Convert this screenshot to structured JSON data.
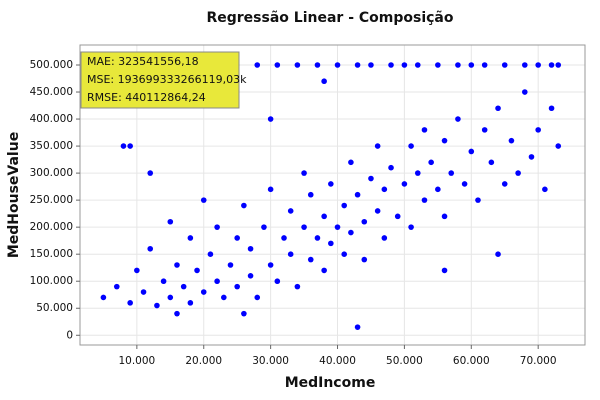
{
  "chart_data": {
    "type": "scatter",
    "title": "Regressão Linear - Composição",
    "x_label": "MedIncome",
    "y_label": "MedHouseValue",
    "color": "#0000ff",
    "grid": true,
    "annotations": [
      "MAE: 323541556,18",
      "MSE: 193699333266119,03k",
      "RMSE: 440112864,24"
    ],
    "xlim": [
      1500,
      77000
    ],
    "ylim": [
      -18000,
      537000
    ],
    "xticks": [
      {
        "value": 10000,
        "label": "10.000"
      },
      {
        "value": 20000,
        "label": "20.000"
      },
      {
        "value": 30000,
        "label": "30.000"
      },
      {
        "value": 40000,
        "label": "40.000"
      },
      {
        "value": 50000,
        "label": "50.000"
      },
      {
        "value": 60000,
        "label": "60.000"
      },
      {
        "value": 70000,
        "label": "70.000"
      }
    ],
    "yticks": [
      0,
      {
        "value": 50000,
        "label": "50.000"
      },
      {
        "value": 100000,
        "label": "100.000"
      },
      {
        "value": 150000,
        "label": "150.000"
      },
      {
        "value": 200000,
        "label": "200.000"
      },
      {
        "value": 250000,
        "label": "250.000"
      },
      {
        "value": 300000,
        "label": "300.000"
      },
      {
        "value": 350000,
        "label": "350.000"
      },
      {
        "value": 400000,
        "label": "400.000"
      },
      {
        "value": 450000,
        "label": "450.000"
      },
      {
        "value": 500000,
        "label": "500.000"
      }
    ],
    "x": [
      5000,
      7000,
      8000,
      9000,
      10000,
      11000,
      12000,
      13000,
      14000,
      15000,
      15000,
      16000,
      17000,
      18000,
      18000,
      19000,
      20000,
      20000,
      21000,
      22000,
      22000,
      23000,
      24000,
      24000,
      25000,
      25000,
      26000,
      27000,
      27000,
      28000,
      28000,
      29000,
      30000,
      30000,
      31000,
      31000,
      32000,
      33000,
      33000,
      34000,
      34000,
      35000,
      35000,
      36000,
      36000,
      37000,
      37000,
      38000,
      38000,
      39000,
      39000,
      40000,
      40000,
      41000,
      41000,
      42000,
      42000,
      43000,
      43000,
      44000,
      44000,
      45000,
      45000,
      46000,
      46000,
      47000,
      47000,
      48000,
      48000,
      49000,
      50000,
      50000,
      51000,
      51000,
      52000,
      52000,
      53000,
      53000,
      54000,
      55000,
      55000,
      56000,
      56000,
      57000,
      58000,
      58000,
      59000,
      60000,
      60000,
      61000,
      62000,
      62000,
      63000,
      64000,
      65000,
      65000,
      66000,
      67000,
      68000,
      68000,
      69000,
      70000,
      70000,
      71000,
      72000,
      72000,
      73000,
      73000,
      43000,
      12000,
      20000,
      30000,
      38000,
      26000,
      16000,
      9000,
      64000,
      56000
    ],
    "y": [
      70000,
      90000,
      350000,
      60000,
      120000,
      80000,
      160000,
      55000,
      100000,
      210000,
      70000,
      130000,
      90000,
      180000,
      60000,
      120000,
      250000,
      80000,
      150000,
      100000,
      200000,
      70000,
      130000,
      500000,
      180000,
      90000,
      240000,
      110000,
      160000,
      500000,
      70000,
      200000,
      130000,
      270000,
      100000,
      500000,
      180000,
      150000,
      230000,
      90000,
      500000,
      200000,
      300000,
      140000,
      260000,
      180000,
      500000,
      220000,
      120000,
      280000,
      170000,
      200000,
      500000,
      240000,
      150000,
      320000,
      190000,
      260000,
      500000,
      210000,
      140000,
      290000,
      500000,
      230000,
      350000,
      180000,
      270000,
      500000,
      310000,
      220000,
      280000,
      500000,
      350000,
      200000,
      300000,
      500000,
      250000,
      380000,
      320000,
      270000,
      500000,
      360000,
      220000,
      300000,
      400000,
      500000,
      280000,
      340000,
      500000,
      250000,
      380000,
      500000,
      320000,
      420000,
      280000,
      500000,
      360000,
      300000,
      450000,
      500000,
      330000,
      380000,
      500000,
      270000,
      420000,
      500000,
      350000,
      500000,
      15000,
      300000,
      450000,
      400000,
      470000,
      40000,
      40000,
      350000,
      150000,
      120000
    ]
  }
}
